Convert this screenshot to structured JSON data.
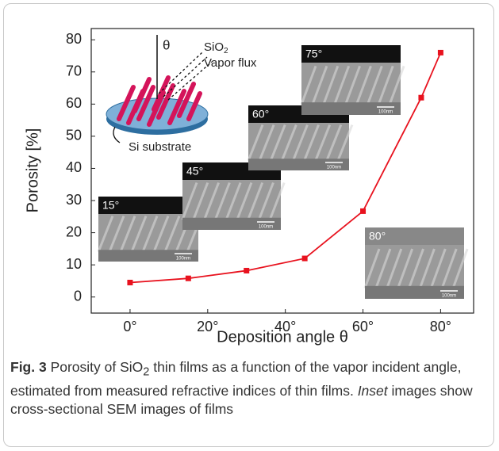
{
  "chart_data": {
    "type": "line",
    "x": [
      0,
      15,
      30,
      45,
      60,
      75,
      80
    ],
    "values": [
      4.5,
      5.8,
      8.2,
      12,
      26.7,
      62,
      76
    ],
    "color": "#e8121e",
    "xlim": [
      -10,
      88.5
    ],
    "ylim": [
      -5,
      83.5
    ],
    "xticks": [
      {
        "value": 0,
        "label": "0°"
      },
      {
        "value": 20,
        "label": "20°"
      },
      {
        "value": 40,
        "label": "40°"
      },
      {
        "value": 60,
        "label": "60°"
      },
      {
        "value": 80,
        "label": "80°"
      }
    ],
    "yticks": [
      0,
      10,
      20,
      30,
      40,
      50,
      60,
      70,
      80
    ],
    "xlabel": "Deposition angle θ",
    "ylabel": "Porosity [%]",
    "schematic": {
      "angle": "θ",
      "material": "SiO",
      "material_sub": "2",
      "flux": "Vapor flux",
      "substrate": "Si substrate"
    },
    "insets": [
      {
        "label": "15°",
        "scale": "100nm"
      },
      {
        "label": "45°",
        "scale": "100nm"
      },
      {
        "label": "60°",
        "scale": "100nm"
      },
      {
        "label": "75°",
        "scale": "100nm"
      },
      {
        "label": "80°",
        "scale": "100nm"
      }
    ]
  },
  "caption": {
    "label": "Fig. 3",
    "text_1": "Porosity of SiO",
    "subscript": "2",
    "text_2": "thin films as a function of the vapor incident angle, estimated from measured refractive indices of thin films.",
    "emphasis": "Inset",
    "text_3": "images show cross-sectional SEM images of films"
  }
}
